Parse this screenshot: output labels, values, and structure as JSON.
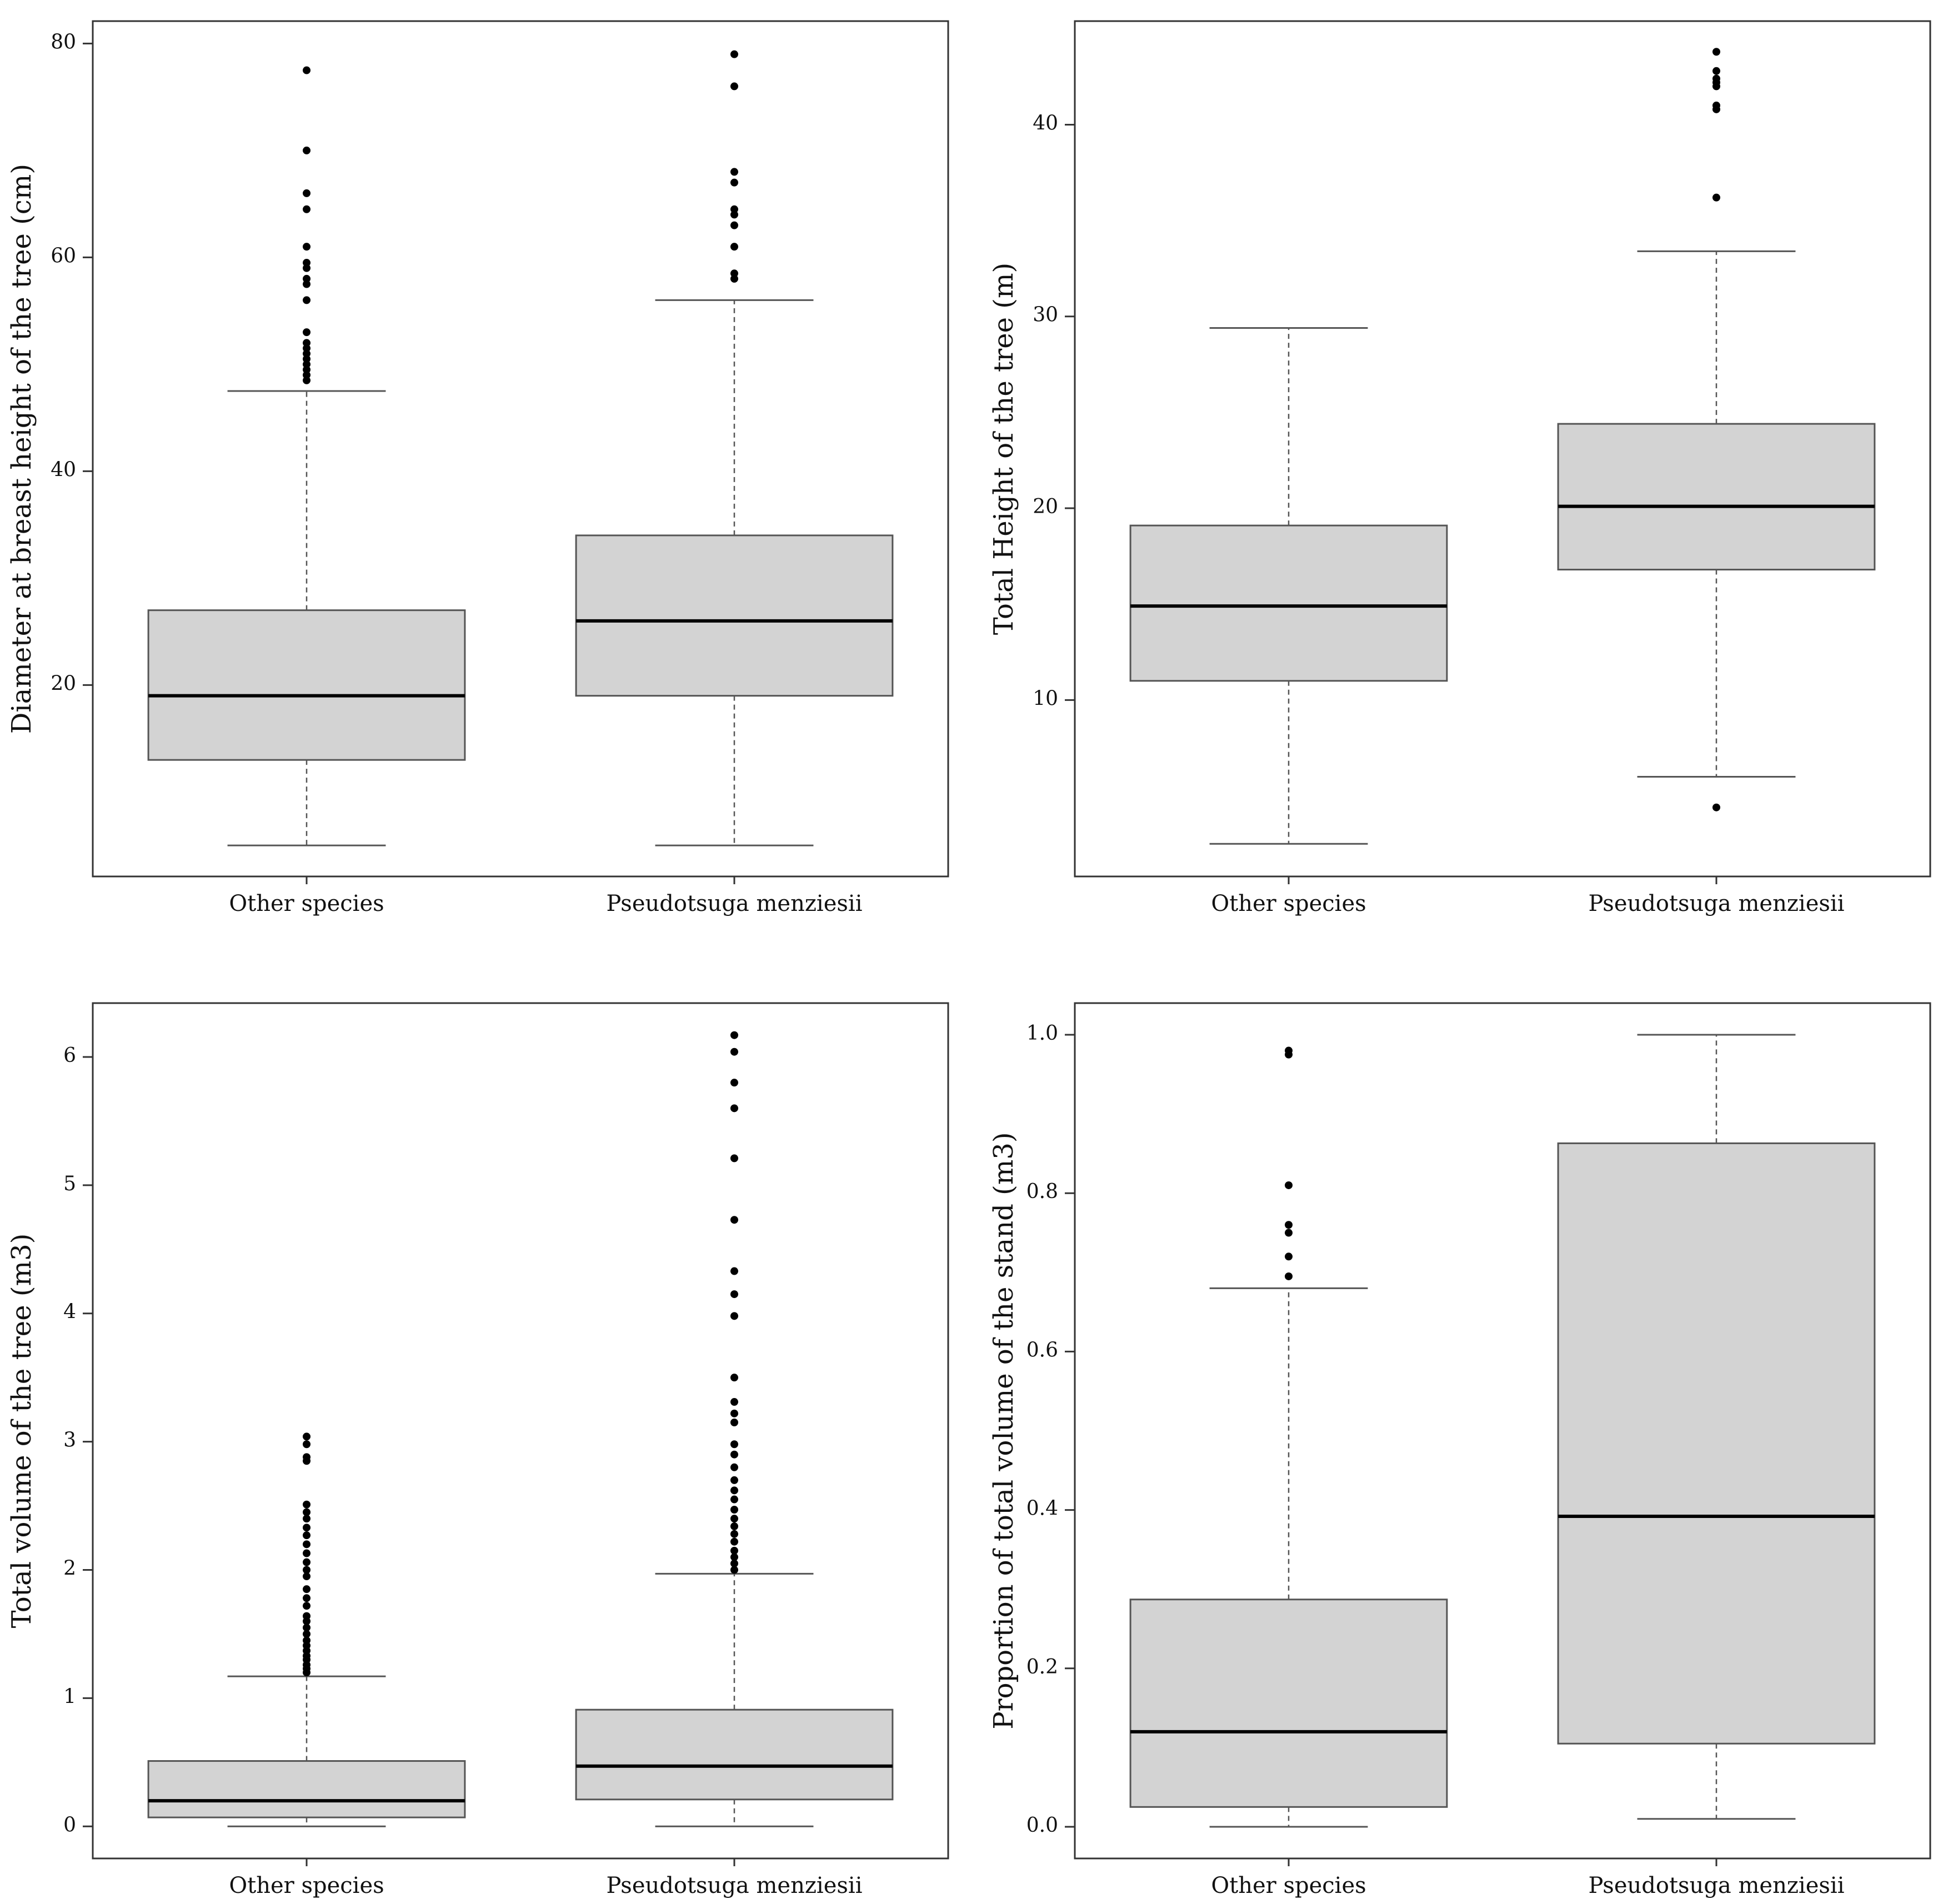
{
  "colors": {
    "box_fill": "#d3d3d3",
    "box_stroke": "#555555",
    "median": "#000000",
    "whisker": "#555555",
    "outlier": "#000000",
    "frame": "#333333"
  },
  "chart_data": [
    {
      "type": "boxplot",
      "ylabel": "Diameter at breast height of the tree (cm)",
      "categories": [
        "Other species",
        "Pseudotsuga menziesii"
      ],
      "ylim": [
        2.1,
        82.1
      ],
      "yticks": [
        20,
        40,
        60,
        80
      ],
      "ytick_labels": [
        "20",
        "40",
        "60",
        "80"
      ],
      "boxes": [
        {
          "whisker_low": 5,
          "q1": 13,
          "median": 19,
          "q3": 27,
          "whisker_high": 47.5,
          "outliers": [
            48.5,
            49,
            49.5,
            50,
            50.5,
            51,
            51.5,
            52,
            53,
            56,
            57.5,
            58,
            59,
            59.5,
            61,
            64.5,
            66,
            70,
            77.5
          ]
        },
        {
          "whisker_low": 5,
          "q1": 19,
          "median": 26,
          "q3": 34,
          "whisker_high": 56,
          "outliers": [
            58,
            58.5,
            61,
            63,
            64,
            64.5,
            67,
            68,
            76,
            79
          ]
        }
      ]
    },
    {
      "type": "boxplot",
      "ylabel": "Total Height of the tree (m)",
      "categories": [
        "Other species",
        "Pseudotsuga menziesii"
      ],
      "ylim": [
        0.8,
        45.4
      ],
      "yticks": [
        10,
        20,
        30,
        40
      ],
      "ytick_labels": [
        "10",
        "20",
        "30",
        "40"
      ],
      "boxes": [
        {
          "whisker_low": 2.5,
          "q1": 11,
          "median": 14.9,
          "q3": 19.1,
          "whisker_high": 29.4,
          "outliers": []
        },
        {
          "whisker_low": 6,
          "q1": 16.8,
          "median": 20.1,
          "q3": 24.4,
          "whisker_high": 33.4,
          "outliers": [
            4.4,
            36.2,
            40.8,
            41,
            42,
            42.2,
            42.4,
            42.8,
            43.8
          ]
        }
      ]
    },
    {
      "type": "boxplot",
      "ylabel": "Total volume of the tree (m3)",
      "categories": [
        "Other species",
        "Pseudotsuga menziesii"
      ],
      "ylim": [
        -0.25,
        6.42
      ],
      "yticks": [
        0,
        1,
        2,
        3,
        4,
        5,
        6
      ],
      "ytick_labels": [
        "0",
        "1",
        "2",
        "3",
        "4",
        "5",
        "6"
      ],
      "boxes": [
        {
          "whisker_low": 0,
          "q1": 0.07,
          "median": 0.2,
          "q3": 0.51,
          "whisker_high": 1.17,
          "outliers": [
            1.2,
            1.23,
            1.26,
            1.3,
            1.33,
            1.37,
            1.41,
            1.45,
            1.5,
            1.55,
            1.6,
            1.64,
            1.72,
            1.78,
            1.85,
            1.95,
            2.0,
            2.06,
            2.13,
            2.2,
            2.27,
            2.33,
            2.4,
            2.45,
            2.51,
            2.85,
            2.88,
            2.98,
            3.04
          ]
        },
        {
          "whisker_low": 0,
          "q1": 0.21,
          "median": 0.47,
          "q3": 0.91,
          "whisker_high": 1.97,
          "outliers": [
            2.0,
            2.05,
            2.1,
            2.15,
            2.22,
            2.28,
            2.34,
            2.4,
            2.47,
            2.55,
            2.62,
            2.7,
            2.8,
            2.9,
            2.98,
            3.15,
            3.22,
            3.31,
            3.5,
            3.98,
            4.15,
            4.33,
            4.73,
            5.21,
            5.6,
            5.8,
            6.04,
            6.17
          ]
        }
      ]
    },
    {
      "type": "boxplot",
      "ylabel": "Proportion of total volume of the stand (m3)",
      "categories": [
        "Other species",
        "Pseudotsuga menziesii"
      ],
      "ylim": [
        -0.04,
        1.04
      ],
      "yticks": [
        0.0,
        0.2,
        0.4,
        0.6,
        0.8,
        1.0
      ],
      "ytick_labels": [
        "0.0",
        "0.2",
        "0.4",
        "0.6",
        "0.8",
        "1.0"
      ],
      "boxes": [
        {
          "whisker_low": 0,
          "q1": 0.025,
          "median": 0.12,
          "q3": 0.287,
          "whisker_high": 0.68,
          "outliers": [
            0.695,
            0.72,
            0.75,
            0.76,
            0.81,
            0.975,
            0.98
          ]
        },
        {
          "whisker_low": 0.01,
          "q1": 0.105,
          "median": 0.392,
          "q3": 0.863,
          "whisker_high": 1.0,
          "outliers": []
        }
      ]
    }
  ]
}
